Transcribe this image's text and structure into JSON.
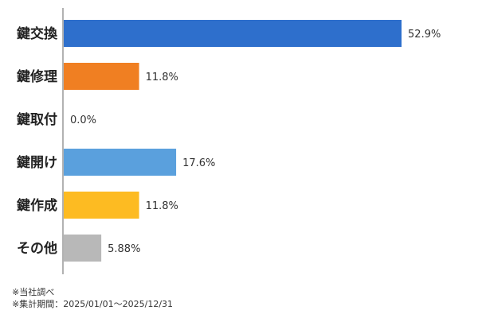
{
  "chart_data": {
    "type": "bar",
    "orientation": "horizontal",
    "categories": [
      "鍵交換",
      "鍵修理",
      "鍵取付",
      "鍵開け",
      "鍵作成",
      "その他"
    ],
    "values": [
      52.9,
      11.8,
      0.0,
      17.6,
      11.8,
      5.88
    ],
    "value_labels": [
      "52.9%",
      "11.8%",
      "0.0%",
      "17.6%",
      "11.8%",
      "5.88%"
    ],
    "colors": [
      "#2e6fcc",
      "#f07f22",
      "#9e9e9e",
      "#5aa0dd",
      "#fdbb22",
      "#b8b8b8"
    ],
    "xlim": [
      0,
      63
    ],
    "grid": false,
    "legend": "none"
  },
  "notes": {
    "source": "※当社調べ",
    "period": "※集計期間：2025/01/01～2025/12/31"
  }
}
